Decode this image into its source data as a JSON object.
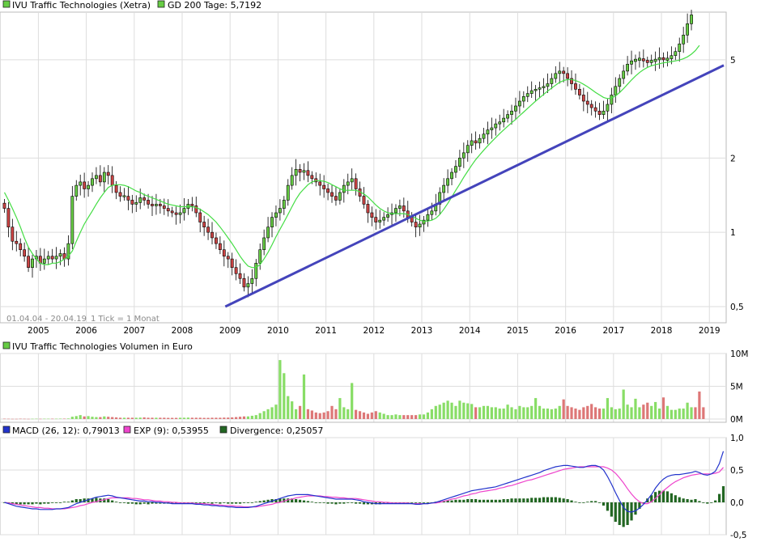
{
  "chart_data": [
    {
      "type": "candlestick",
      "scale": "log",
      "title": "IVU Traffic Technologies (Xetra)",
      "ma_legend": "GD 200 Tage: 5,7192",
      "ma_name": "GD 200 Tage",
      "info": "01.04.04 - 20.04.19",
      "tick_info": "1 Tick = 1 Monat",
      "x_ticks": [
        "2005",
        "2006",
        "2007",
        "2008",
        "2009",
        "2010",
        "2011",
        "2012",
        "2013",
        "2014",
        "2015",
        "2016",
        "2017",
        "2018",
        "2019"
      ],
      "y_ticks": [
        "0,5",
        "1",
        "2",
        "5"
      ],
      "y_tick_values": [
        0.5,
        1,
        2,
        5
      ],
      "ylim": [
        0.43,
        7.8
      ],
      "date_range": [
        2004.25,
        2019.3
      ],
      "colors": {
        "up": "#66cc44",
        "down": "#cc4444",
        "ma": "#44dd44",
        "trend": "#4444bb"
      },
      "monthly_close": [
        1.25,
        1.05,
        0.92,
        0.9,
        0.85,
        0.8,
        0.72,
        0.78,
        0.8,
        0.75,
        0.78,
        0.8,
        0.78,
        0.8,
        0.82,
        0.78,
        0.9,
        1.4,
        1.55,
        1.6,
        1.5,
        1.55,
        1.65,
        1.7,
        1.6,
        1.75,
        1.7,
        1.55,
        1.45,
        1.4,
        1.4,
        1.35,
        1.3,
        1.32,
        1.38,
        1.35,
        1.3,
        1.28,
        1.3,
        1.28,
        1.25,
        1.22,
        1.2,
        1.18,
        1.2,
        1.25,
        1.3,
        1.28,
        1.2,
        1.1,
        1.05,
        1.0,
        0.95,
        0.9,
        0.85,
        0.8,
        0.78,
        0.72,
        0.68,
        0.65,
        0.6,
        0.62,
        0.65,
        0.75,
        0.85,
        0.95,
        1.05,
        1.15,
        1.2,
        1.25,
        1.35,
        1.55,
        1.7,
        1.8,
        1.75,
        1.78,
        1.7,
        1.65,
        1.6,
        1.55,
        1.5,
        1.45,
        1.4,
        1.35,
        1.45,
        1.55,
        1.6,
        1.65,
        1.5,
        1.4,
        1.3,
        1.2,
        1.15,
        1.1,
        1.12,
        1.15,
        1.18,
        1.2,
        1.25,
        1.28,
        1.22,
        1.15,
        1.1,
        1.05,
        1.08,
        1.12,
        1.18,
        1.22,
        1.3,
        1.45,
        1.55,
        1.65,
        1.75,
        1.85,
        2.0,
        2.1,
        2.25,
        2.35,
        2.3,
        2.4,
        2.5,
        2.6,
        2.65,
        2.75,
        2.8,
        2.9,
        3.0,
        3.1,
        3.25,
        3.4,
        3.55,
        3.65,
        3.75,
        3.8,
        3.85,
        3.9,
        4.0,
        4.2,
        4.4,
        4.5,
        4.4,
        4.2,
        4.0,
        3.8,
        3.6,
        3.4,
        3.3,
        3.2,
        3.1,
        3.0,
        3.1,
        3.3,
        3.6,
        3.9,
        4.2,
        4.5,
        4.8,
        4.95,
        5.0,
        5.05,
        4.95,
        4.9,
        4.95,
        5.0,
        5.1,
        5.0,
        5.05,
        5.2,
        5.4,
        5.8,
        6.3,
        7.0,
        7.6
      ],
      "ma_values": [
        1.45,
        1.35,
        1.25,
        1.15,
        1.05,
        0.95,
        0.87,
        0.82,
        0.78,
        0.75,
        0.74,
        0.74,
        0.75,
        0.75,
        0.76,
        0.78,
        0.8,
        0.84,
        0.92,
        1.0,
        1.08,
        1.15,
        1.22,
        1.3,
        1.38,
        1.45,
        1.52,
        1.55,
        1.56,
        1.56,
        1.55,
        1.53,
        1.5,
        1.47,
        1.45,
        1.42,
        1.4,
        1.38,
        1.36,
        1.34,
        1.32,
        1.3,
        1.29,
        1.28,
        1.27,
        1.27,
        1.27,
        1.27,
        1.26,
        1.24,
        1.21,
        1.18,
        1.14,
        1.1,
        1.05,
        1.0,
        0.95,
        0.9,
        0.85,
        0.8,
        0.76,
        0.73,
        0.72,
        0.72,
        0.74,
        0.78,
        0.83,
        0.89,
        0.96,
        1.03,
        1.1,
        1.18,
        1.27,
        1.36,
        1.44,
        1.5,
        1.56,
        1.6,
        1.62,
        1.62,
        1.61,
        1.59,
        1.56,
        1.53,
        1.5,
        1.48,
        1.48,
        1.48,
        1.48,
        1.46,
        1.43,
        1.39,
        1.34,
        1.29,
        1.25,
        1.22,
        1.2,
        1.19,
        1.19,
        1.19,
        1.19,
        1.18,
        1.16,
        1.14,
        1.12,
        1.11,
        1.11,
        1.12,
        1.14,
        1.18,
        1.24,
        1.31,
        1.39,
        1.48,
        1.57,
        1.67,
        1.77,
        1.87,
        1.97,
        2.06,
        2.15,
        2.24,
        2.33,
        2.42,
        2.51,
        2.6,
        2.69,
        2.78,
        2.87,
        2.97,
        3.07,
        3.18,
        3.29,
        3.4,
        3.51,
        3.62,
        3.73,
        3.84,
        3.95,
        4.05,
        4.12,
        4.16,
        4.16,
        4.12,
        4.06,
        3.98,
        3.89,
        3.79,
        3.69,
        3.6,
        3.52,
        3.48,
        3.5,
        3.57,
        3.68,
        3.82,
        3.98,
        4.14,
        4.3,
        4.44,
        4.56,
        4.66,
        4.73,
        4.78,
        4.82,
        4.86,
        4.89,
        4.92,
        4.95,
        4.99,
        5.05,
        5.14,
        5.27,
        5.45,
        5.72
      ],
      "trendline": {
        "start": {
          "date": 2008.9,
          "value": 0.5
        },
        "end": {
          "date": 2019.3,
          "value": 4.75
        }
      }
    },
    {
      "type": "bar",
      "title": "IVU Traffic Technologies Volumen in Euro",
      "unit": "M",
      "y_ticks": [
        "0M",
        "5M",
        "10M"
      ],
      "y_tick_values": [
        0,
        5,
        10
      ],
      "ylim": [
        0,
        10
      ],
      "values": [
        0.05,
        0.04,
        0.03,
        0.03,
        0.05,
        0.04,
        0.03,
        0.04,
        0.05,
        0.04,
        0.05,
        0.05,
        0.05,
        0.05,
        0.06,
        0.06,
        0.08,
        0.35,
        0.45,
        0.6,
        0.4,
        0.45,
        0.35,
        0.3,
        0.3,
        0.4,
        0.35,
        0.3,
        0.25,
        0.2,
        0.2,
        0.2,
        0.2,
        0.2,
        0.22,
        0.25,
        0.2,
        0.2,
        0.2,
        0.2,
        0.2,
        0.18,
        0.18,
        0.18,
        0.2,
        0.2,
        0.22,
        0.2,
        0.2,
        0.2,
        0.18,
        0.18,
        0.2,
        0.2,
        0.2,
        0.22,
        0.22,
        0.25,
        0.3,
        0.35,
        0.4,
        0.4,
        0.5,
        0.6,
        0.9,
        1.2,
        1.5,
        1.8,
        2.2,
        9.0,
        7.0,
        3.5,
        2.7,
        1.5,
        2.0,
        6.8,
        1.5,
        1.3,
        1.0,
        0.9,
        1.0,
        1.2,
        2.0,
        1.5,
        3.2,
        1.8,
        1.5,
        5.5,
        1.4,
        1.2,
        1.0,
        0.8,
        1.0,
        1.2,
        1.0,
        0.8,
        0.6,
        0.6,
        0.7,
        0.6,
        0.6,
        0.6,
        0.6,
        0.6,
        0.7,
        0.7,
        1.0,
        1.5,
        2.0,
        2.2,
        2.5,
        2.8,
        2.5,
        2.0,
        2.8,
        2.5,
        2.4,
        2.3,
        1.8,
        1.8,
        2.0,
        2.0,
        1.8,
        1.8,
        1.6,
        1.6,
        2.2,
        1.8,
        1.5,
        2.0,
        1.8,
        1.8,
        2.0,
        3.2,
        2.0,
        1.6,
        1.6,
        1.5,
        1.6,
        2.0,
        3.0,
        2.0,
        1.8,
        1.6,
        1.4,
        1.8,
        2.0,
        2.3,
        1.8,
        1.6,
        1.6,
        3.2,
        1.8,
        1.5,
        1.6,
        4.5,
        2.2,
        1.8,
        3.1,
        1.8,
        2.2,
        2.5,
        2.0,
        2.6,
        1.6,
        3.3,
        2.0,
        1.4,
        1.4,
        1.6,
        1.6,
        2.5,
        1.8,
        1.8,
        4.2,
        1.8
      ]
    },
    {
      "type": "line",
      "macd_legend": "MACD (26, 12): 0,79013",
      "exp_legend": "EXP (9): 0,53955",
      "div_legend": "Divergence: 0,25057",
      "y_ticks": [
        "-0,5",
        "0,0",
        "0,5",
        "1,0"
      ],
      "y_tick_values": [
        -0.5,
        0,
        0.5,
        1.0
      ],
      "ylim": [
        -0.5,
        1.0
      ],
      "colors": {
        "macd": "#2233cc",
        "exp": "#ee44cc",
        "div": "#226622"
      },
      "macd_values": [
        0.0,
        -0.02,
        -0.04,
        -0.06,
        -0.07,
        -0.08,
        -0.09,
        -0.1,
        -0.1,
        -0.11,
        -0.11,
        -0.11,
        -0.11,
        -0.1,
        -0.1,
        -0.09,
        -0.08,
        -0.05,
        -0.02,
        0.0,
        0.02,
        0.04,
        0.06,
        0.08,
        0.09,
        0.1,
        0.11,
        0.1,
        0.08,
        0.07,
        0.06,
        0.05,
        0.04,
        0.03,
        0.02,
        0.02,
        0.01,
        0.01,
        0.0,
        0.0,
        -0.01,
        -0.01,
        -0.02,
        -0.02,
        -0.02,
        -0.02,
        -0.02,
        -0.02,
        -0.03,
        -0.03,
        -0.04,
        -0.04,
        -0.05,
        -0.05,
        -0.06,
        -0.06,
        -0.07,
        -0.07,
        -0.08,
        -0.08,
        -0.08,
        -0.08,
        -0.07,
        -0.06,
        -0.04,
        -0.02,
        0.0,
        0.02,
        0.04,
        0.06,
        0.08,
        0.1,
        0.11,
        0.12,
        0.12,
        0.12,
        0.12,
        0.11,
        0.1,
        0.09,
        0.08,
        0.07,
        0.06,
        0.05,
        0.05,
        0.05,
        0.05,
        0.05,
        0.04,
        0.03,
        0.01,
        0.0,
        -0.01,
        -0.02,
        -0.02,
        -0.02,
        -0.02,
        -0.02,
        -0.02,
        -0.02,
        -0.02,
        -0.02,
        -0.02,
        -0.03,
        -0.03,
        -0.02,
        -0.02,
        -0.01,
        0.0,
        0.02,
        0.04,
        0.06,
        0.08,
        0.1,
        0.12,
        0.14,
        0.16,
        0.18,
        0.19,
        0.2,
        0.21,
        0.22,
        0.23,
        0.24,
        0.26,
        0.28,
        0.3,
        0.32,
        0.34,
        0.36,
        0.38,
        0.4,
        0.42,
        0.44,
        0.46,
        0.49,
        0.51,
        0.53,
        0.55,
        0.56,
        0.57,
        0.57,
        0.56,
        0.55,
        0.54,
        0.54,
        0.56,
        0.57,
        0.57,
        0.55,
        0.5,
        0.4,
        0.28,
        0.15,
        0.03,
        -0.08,
        -0.14,
        -0.15,
        -0.13,
        -0.09,
        -0.03,
        0.04,
        0.12,
        0.22,
        0.3,
        0.36,
        0.4,
        0.42,
        0.43,
        0.43,
        0.44,
        0.45,
        0.46,
        0.48,
        0.46,
        0.43,
        0.42,
        0.44,
        0.48,
        0.6,
        0.79
      ],
      "exp_values": [
        0.0,
        -0.01,
        -0.02,
        -0.03,
        -0.04,
        -0.05,
        -0.06,
        -0.07,
        -0.08,
        -0.08,
        -0.09,
        -0.09,
        -0.1,
        -0.1,
        -0.1,
        -0.1,
        -0.09,
        -0.08,
        -0.07,
        -0.05,
        -0.04,
        -0.02,
        0.0,
        0.01,
        0.03,
        0.04,
        0.06,
        0.07,
        0.07,
        0.07,
        0.07,
        0.07,
        0.06,
        0.06,
        0.05,
        0.04,
        0.04,
        0.03,
        0.02,
        0.02,
        0.01,
        0.01,
        0.0,
        0.0,
        -0.01,
        -0.01,
        -0.01,
        -0.01,
        -0.02,
        -0.02,
        -0.02,
        -0.03,
        -0.03,
        -0.04,
        -0.04,
        -0.05,
        -0.05,
        -0.05,
        -0.06,
        -0.06,
        -0.07,
        -0.07,
        -0.07,
        -0.07,
        -0.06,
        -0.05,
        -0.04,
        -0.03,
        -0.01,
        0.0,
        0.02,
        0.04,
        0.05,
        0.07,
        0.08,
        0.09,
        0.1,
        0.1,
        0.1,
        0.1,
        0.09,
        0.09,
        0.08,
        0.08,
        0.07,
        0.07,
        0.06,
        0.06,
        0.06,
        0.05,
        0.04,
        0.03,
        0.02,
        0.01,
        0.01,
        0.0,
        0.0,
        -0.01,
        -0.01,
        -0.01,
        -0.01,
        -0.01,
        -0.02,
        -0.02,
        -0.02,
        -0.02,
        -0.02,
        -0.01,
        -0.01,
        0.0,
        0.02,
        0.03,
        0.05,
        0.06,
        0.08,
        0.1,
        0.11,
        0.13,
        0.14,
        0.16,
        0.17,
        0.18,
        0.19,
        0.2,
        0.22,
        0.23,
        0.25,
        0.26,
        0.28,
        0.3,
        0.32,
        0.34,
        0.35,
        0.37,
        0.39,
        0.41,
        0.43,
        0.45,
        0.47,
        0.49,
        0.51,
        0.52,
        0.53,
        0.54,
        0.55,
        0.55,
        0.55,
        0.55,
        0.55,
        0.55,
        0.55,
        0.53,
        0.5,
        0.45,
        0.38,
        0.3,
        0.21,
        0.13,
        0.06,
        0.01,
        -0.02,
        -0.02,
        0.01,
        0.06,
        0.12,
        0.18,
        0.23,
        0.28,
        0.32,
        0.35,
        0.38,
        0.4,
        0.42,
        0.43,
        0.44,
        0.44,
        0.44,
        0.44,
        0.45,
        0.47,
        0.54
      ]
    }
  ]
}
